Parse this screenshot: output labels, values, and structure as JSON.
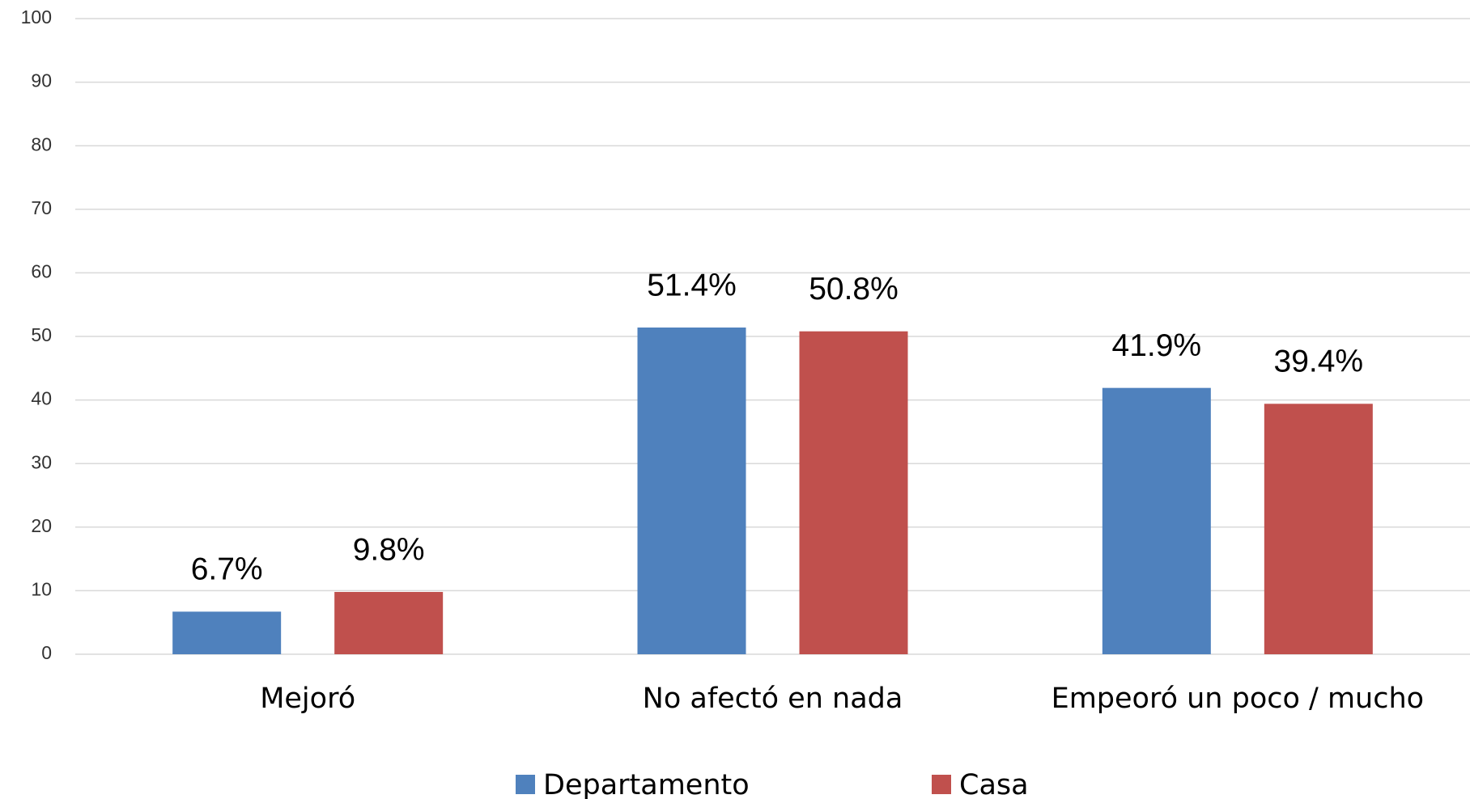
{
  "chart_data": {
    "type": "bar",
    "categories": [
      "Mejoró",
      "No afectó en nada",
      "Empeoró un poco / mucho"
    ],
    "series": [
      {
        "name": "Departamento",
        "color": "#4f81bd",
        "values": [
          6.7,
          51.4,
          41.9
        ],
        "value_labels": [
          "6.7%",
          "51.4%",
          "41.9%"
        ]
      },
      {
        "name": "Casa",
        "color": "#c0504d",
        "values": [
          9.8,
          50.8,
          39.4
        ],
        "value_labels": [
          "9.8%",
          "50.8%",
          "39.4%"
        ]
      }
    ],
    "ylim": [
      0,
      100
    ],
    "yticks": [
      0,
      10,
      20,
      30,
      40,
      50,
      60,
      70,
      80,
      90,
      100
    ],
    "grid": true,
    "legend": "bottom"
  }
}
